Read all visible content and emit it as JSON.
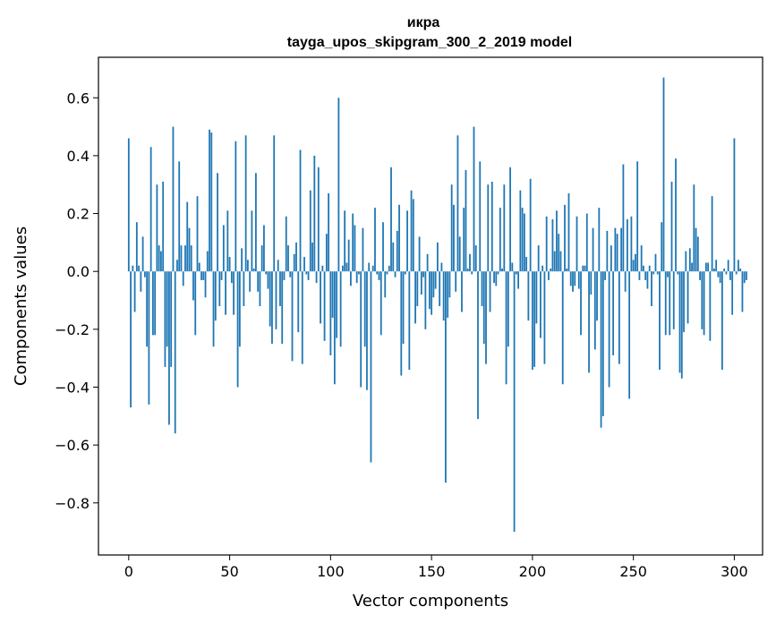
{
  "chart_data": {
    "type": "bar",
    "title": "икра",
    "subtitle": "tayga_upos_skipgram_300_2_2019 model",
    "xlabel": "Vector components",
    "ylabel": "Components values",
    "xlim": [
      -15,
      314
    ],
    "ylim": [
      -0.98,
      0.74
    ],
    "xticks": [
      0,
      50,
      100,
      150,
      200,
      250,
      300
    ],
    "yticks": [
      -0.8,
      -0.6,
      -0.4,
      -0.2,
      0.0,
      0.2,
      0.4,
      0.6
    ],
    "ytick_labels": [
      "−0.8",
      "−0.6",
      "−0.4",
      "−0.2",
      "0.0",
      "0.2",
      "0.4",
      "0.6"
    ],
    "bar_color": "#1f77b4",
    "grid": false,
    "values": [
      0.46,
      -0.47,
      0.02,
      -0.14,
      0.17,
      0.02,
      -0.07,
      0.12,
      -0.02,
      -0.26,
      -0.46,
      0.43,
      -0.22,
      -0.22,
      0.3,
      0.09,
      0.07,
      0.31,
      -0.33,
      -0.26,
      -0.53,
      -0.33,
      0.5,
      -0.56,
      0.04,
      0.38,
      0.09,
      -0.05,
      0.09,
      0.24,
      0.15,
      0.09,
      -0.1,
      -0.22,
      0.26,
      0.03,
      -0.03,
      -0.03,
      -0.09,
      0.07,
      0.49,
      0.48,
      -0.26,
      -0.17,
      0.34,
      -0.12,
      -0.03,
      0.16,
      -0.15,
      0.21,
      0.05,
      -0.04,
      -0.15,
      0.45,
      -0.4,
      -0.26,
      0.08,
      -0.12,
      0.47,
      0.04,
      -0.07,
      0.21,
      0.01,
      0.34,
      -0.07,
      -0.12,
      0.09,
      0.16,
      -0.01,
      -0.06,
      -0.19,
      -0.25,
      0.47,
      -0.2,
      0.04,
      -0.12,
      -0.25,
      -0.03,
      0.19,
      0.09,
      -0.02,
      -0.31,
      0.06,
      0.1,
      -0.21,
      0.42,
      -0.32,
      0.05,
      -0.01,
      -0.03,
      0.28,
      0.1,
      0.4,
      -0.04,
      0.36,
      -0.18,
      0.02,
      -0.24,
      0.13,
      0.27,
      -0.29,
      -0.16,
      -0.39,
      -0.23,
      0.6,
      -0.26,
      0.02,
      0.21,
      0.03,
      0.11,
      -0.05,
      0.2,
      0.16,
      -0.04,
      -0.01,
      -0.4,
      0.15,
      -0.26,
      -0.41,
      0.03,
      -0.66,
      0.02,
      0.22,
      -0.01,
      -0.03,
      -0.22,
      0.17,
      -0.09,
      -0.01,
      0.02,
      0.36,
      0.1,
      -0.02,
      0.14,
      0.23,
      -0.36,
      -0.25,
      -0.01,
      0.21,
      -0.34,
      0.28,
      0.25,
      -0.18,
      -0.12,
      0.12,
      -0.08,
      -0.02,
      -0.2,
      0.06,
      -0.13,
      -0.15,
      -0.09,
      -0.06,
      0.1,
      -0.12,
      0.03,
      -0.17,
      -0.73,
      -0.16,
      -0.09,
      0.3,
      0.23,
      -0.07,
      0.47,
      0.12,
      -0.14,
      0.22,
      0.35,
      0.01,
      0.06,
      -0.01,
      0.5,
      0.09,
      -0.51,
      0.38,
      -0.12,
      -0.25,
      -0.32,
      0.3,
      -0.14,
      0.31,
      -0.04,
      -0.05,
      -0.01,
      0.22,
      0.01,
      0.3,
      -0.39,
      -0.26,
      0.36,
      0.03,
      -0.9,
      -0.01,
      -0.06,
      0.28,
      0.22,
      0.2,
      0.05,
      -0.17,
      0.32,
      -0.34,
      -0.33,
      -0.18,
      0.09,
      -0.23,
      0.02,
      -0.32,
      0.19,
      -0.03,
      0.01,
      0.18,
      0.07,
      0.21,
      0.13,
      0.07,
      -0.39,
      0.23,
      0.01,
      0.27,
      -0.05,
      -0.07,
      -0.05,
      0.19,
      -0.06,
      -0.22,
      0.02,
      0.02,
      0.2,
      -0.35,
      -0.08,
      0.15,
      -0.27,
      -0.17,
      0.22,
      -0.54,
      -0.5,
      -0.03,
      0.14,
      -0.4,
      0.09,
      -0.29,
      0.15,
      0.13,
      -0.32,
      0.15,
      0.37,
      -0.07,
      0.18,
      -0.44,
      0.19,
      0.04,
      0.06,
      0.38,
      -0.03,
      0.09,
      0.02,
      -0.03,
      -0.06,
      0.02,
      -0.12,
      -0.01,
      0.06,
      -0.01,
      -0.34,
      0.17,
      0.67,
      -0.22,
      -0.02,
      -0.22,
      0.31,
      -0.2,
      0.39,
      -0.01,
      -0.35,
      -0.37,
      -0.21,
      0.07,
      -0.18,
      0.08,
      0.03,
      0.3,
      0.15,
      0.12,
      -0.03,
      -0.2,
      -0.22,
      0.03,
      0.03,
      -0.24,
      0.26,
      0.01,
      0.04,
      -0.02,
      -0.04,
      -0.34,
      0.01,
      -0.01,
      0.04,
      -0.03,
      -0.15,
      0.46,
      -0.01,
      0.04,
      0.01,
      -0.14,
      -0.04,
      -0.03
    ]
  }
}
